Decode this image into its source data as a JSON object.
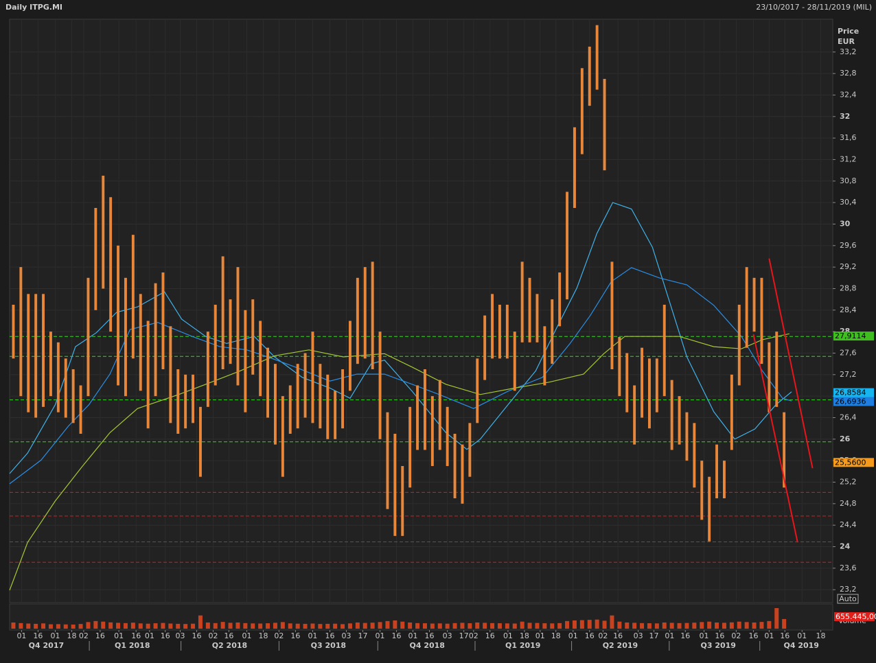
{
  "chart_data": {
    "type": "range_bar",
    "title": "Daily ITPG.MI",
    "date_range": "23/10/2017 - 28/11/2019 (MIL)",
    "y_label": "Price",
    "y_unit": "EUR",
    "scale_mode": "Auto",
    "volume_label": "Volume",
    "color": "#e8873a",
    "grid": true,
    "xlim": [
      0,
      110
    ],
    "ylim": [
      22.96,
      33.81
    ],
    "yticks": [
      {
        "value": 23.2,
        "label": "23,2"
      },
      {
        "value": 23.6,
        "label": "23,6"
      },
      24,
      {
        "value": 24.4,
        "label": "24,4"
      },
      {
        "value": 24.8,
        "label": "24,8"
      },
      {
        "value": 25.2,
        "label": "25,2"
      },
      {
        "value": 25.6,
        "label": "25,6"
      },
      26,
      {
        "value": 26.4,
        "label": "26,4"
      },
      {
        "value": 26.8,
        "label": "26,8"
      },
      {
        "value": 27.2,
        "label": "27,2"
      },
      {
        "value": 27.6,
        "label": "27,6"
      },
      28,
      {
        "value": 28.4,
        "label": "28,4"
      },
      {
        "value": 28.8,
        "label": "28,8"
      },
      {
        "value": 29.2,
        "label": "29,2"
      },
      {
        "value": 29.6,
        "label": "29,6"
      },
      30,
      {
        "value": 30.4,
        "label": "30,4"
      },
      {
        "value": 30.8,
        "label": "30,8"
      },
      {
        "value": 31.2,
        "label": "31,2"
      },
      {
        "value": 31.6,
        "label": "31,6"
      },
      32,
      {
        "value": 32.4,
        "label": "32,4"
      },
      {
        "value": 32.8,
        "label": "32,8"
      },
      {
        "value": 33.2,
        "label": "33,2"
      }
    ],
    "xticks": [
      {
        "value": 1.6,
        "label": "01"
      },
      {
        "value": 3.8,
        "label": "16"
      },
      {
        "value": 6.1,
        "label": "01"
      },
      {
        "value": 8.3,
        "label": "18"
      },
      {
        "value": 9.9,
        "label": "02"
      },
      {
        "value": 12.1,
        "label": "16"
      },
      {
        "value": 14.6,
        "label": "01"
      },
      {
        "value": 16.9,
        "label": "16"
      },
      {
        "value": 18.7,
        "label": "01"
      },
      {
        "value": 20.8,
        "label": "16"
      },
      {
        "value": 22.8,
        "label": "03"
      },
      {
        "value": 25.0,
        "label": "16"
      },
      {
        "value": 27.2,
        "label": "02"
      },
      {
        "value": 29.3,
        "label": "16"
      },
      {
        "value": 31.7,
        "label": "01"
      },
      {
        "value": 33.9,
        "label": "18"
      },
      {
        "value": 36.0,
        "label": "02"
      },
      {
        "value": 38.2,
        "label": "16"
      },
      {
        "value": 40.5,
        "label": "01"
      },
      {
        "value": 42.8,
        "label": "16"
      },
      {
        "value": 45.0,
        "label": "03"
      },
      {
        "value": 47.2,
        "label": "17"
      },
      {
        "value": 49.5,
        "label": "01"
      },
      {
        "value": 51.7,
        "label": "16"
      },
      {
        "value": 53.9,
        "label": "01"
      },
      {
        "value": 56.1,
        "label": "16"
      },
      {
        "value": 58.5,
        "label": "03"
      },
      {
        "value": 60.7,
        "label": "17"
      },
      {
        "value": 62.0,
        "label": "02"
      },
      {
        "value": 64.2,
        "label": "16"
      },
      {
        "value": 66.6,
        "label": "01"
      },
      {
        "value": 68.8,
        "label": "18"
      },
      {
        "value": 70.9,
        "label": "01"
      },
      {
        "value": 73.0,
        "label": "18"
      },
      {
        "value": 75.3,
        "label": "01"
      },
      {
        "value": 77.5,
        "label": "16"
      },
      {
        "value": 79.3,
        "label": "02"
      },
      {
        "value": 81.3,
        "label": "16"
      },
      {
        "value": 84.0,
        "label": "03"
      },
      {
        "value": 86.1,
        "label": "17"
      },
      {
        "value": 88.2,
        "label": "01"
      },
      {
        "value": 90.3,
        "label": "16"
      },
      {
        "value": 92.8,
        "label": "01"
      },
      {
        "value": 94.9,
        "label": "16"
      },
      {
        "value": 97.1,
        "label": "02"
      },
      {
        "value": 99.4,
        "label": "16"
      },
      {
        "value": 101.5,
        "label": "01"
      },
      {
        "value": 103.6,
        "label": "16"
      },
      {
        "value": 105.9,
        "label": "01"
      },
      {
        "value": 108.4,
        "label": "18"
      }
    ],
    "quarters": [
      {
        "value": 4.9,
        "label": "Q4 2017"
      },
      {
        "value": 16.4,
        "label": "Q1 2018"
      },
      {
        "value": 29.4,
        "label": "Q2 2018"
      },
      {
        "value": 42.6,
        "label": "Q3 2018"
      },
      {
        "value": 55.8,
        "label": "Q4 2018"
      },
      {
        "value": 68.6,
        "label": "Q1 2019"
      },
      {
        "value": 81.6,
        "label": "Q2 2019"
      },
      {
        "value": 94.7,
        "label": "Q3 2019"
      },
      {
        "value": 105.8,
        "label": "Q4 2019"
      }
    ],
    "x": [
      0.5,
      1.5,
      2.5,
      3.5,
      4.5,
      5.5,
      6.5,
      7.5,
      8.5,
      9.5,
      10.5,
      11.5,
      12.5,
      13.5,
      14.5,
      15.5,
      16.5,
      17.5,
      18.5,
      19.5,
      20.5,
      21.5,
      22.5,
      23.5,
      24.5,
      25.5,
      26.5,
      27.5,
      28.5,
      29.5,
      30.5,
      31.5,
      32.5,
      33.5,
      34.5,
      35.5,
      36.5,
      37.5,
      38.5,
      39.5,
      40.5,
      41.5,
      42.5,
      43.5,
      44.5,
      45.5,
      46.5,
      47.5,
      48.5,
      49.5,
      50.5,
      51.5,
      52.5,
      53.5,
      54.5,
      55.5,
      56.5,
      57.5,
      58.5,
      59.5,
      60.5,
      61.5,
      62.5,
      63.5,
      64.5,
      65.5,
      66.5,
      67.5,
      68.5,
      69.5,
      70.5,
      71.5,
      72.5,
      73.5,
      74.5,
      75.5,
      76.5,
      77.5,
      78.5,
      79.5,
      80.5,
      81.5,
      82.5,
      83.5,
      84.5,
      85.5,
      86.5,
      87.5,
      88.5,
      89.5,
      90.5,
      91.5,
      92.5,
      93.5,
      94.5,
      95.5,
      96.5,
      97.5,
      98.5,
      99.5,
      100.5,
      101.5,
      102.5,
      103.5
    ],
    "high": [
      28.5,
      29.2,
      28.7,
      28.7,
      28.7,
      28.0,
      27.8,
      27.5,
      27.3,
      27.0,
      29.0,
      30.3,
      30.9,
      30.5,
      29.6,
      29.0,
      29.8,
      28.7,
      28.2,
      28.9,
      29.1,
      28.1,
      27.3,
      27.2,
      27.2,
      26.6,
      28.0,
      28.5,
      29.4,
      28.6,
      29.2,
      28.4,
      28.6,
      28.2,
      27.7,
      27.4,
      26.8,
      27.0,
      27.4,
      27.6,
      28.0,
      27.4,
      27.2,
      26.9,
      27.3,
      28.2,
      29.0,
      29.2,
      29.3,
      28.0,
      26.5,
      26.1,
      25.5,
      26.6,
      27.0,
      27.3,
      26.8,
      27.1,
      26.6,
      26.1,
      25.9,
      26.3,
      27.5,
      28.3,
      28.7,
      28.5,
      28.5,
      28.0,
      29.3,
      29.0,
      28.7,
      28.1,
      28.6,
      29.1,
      30.6,
      31.8,
      32.9,
      33.3,
      33.7,
      32.7,
      29.3,
      27.9,
      27.6,
      27.0,
      27.7,
      27.5,
      27.5,
      28.5,
      27.1,
      26.8,
      26.5,
      26.3,
      25.6,
      25.3,
      25.9,
      25.6,
      27.2,
      28.5,
      29.2,
      29.0,
      29.0,
      27.8,
      28.0,
      26.5
    ],
    "low": [
      27.5,
      26.8,
      26.5,
      26.4,
      26.6,
      26.8,
      26.5,
      26.4,
      26.3,
      26.1,
      26.8,
      28.4,
      28.8,
      28.0,
      27.0,
      26.8,
      27.5,
      26.9,
      26.2,
      26.8,
      27.3,
      26.3,
      26.1,
      26.2,
      26.3,
      25.3,
      26.6,
      27.0,
      27.3,
      27.4,
      27.0,
      26.5,
      27.2,
      26.8,
      26.4,
      25.9,
      25.3,
      26.1,
      26.2,
      26.4,
      26.3,
      26.2,
      26.0,
      26.0,
      26.2,
      26.9,
      27.4,
      27.5,
      27.3,
      26.0,
      24.7,
      24.2,
      24.2,
      25.1,
      25.8,
      25.8,
      25.5,
      25.8,
      25.5,
      24.9,
      24.8,
      25.3,
      26.3,
      27.1,
      27.5,
      27.5,
      27.5,
      26.9,
      27.8,
      27.8,
      27.8,
      27.0,
      27.4,
      28.1,
      28.6,
      30.3,
      31.3,
      32.2,
      32.5,
      31.0,
      27.3,
      26.8,
      26.5,
      25.9,
      26.4,
      26.2,
      26.5,
      26.8,
      25.8,
      25.9,
      25.6,
      25.1,
      24.5,
      24.1,
      24.9,
      24.9,
      25.8,
      27.0,
      27.7,
      28.0,
      27.4,
      26.5,
      26.6,
      25.1
    ],
    "volume": [
      420000,
      380000,
      350000,
      330000,
      360000,
      300000,
      310000,
      290000,
      280000,
      320000,
      450000,
      520000,
      480000,
      430000,
      400000,
      380000,
      410000,
      360000,
      340000,
      370000,
      390000,
      350000,
      330000,
      320000,
      340000,
      900000,
      420000,
      380000,
      460000,
      400000,
      420000,
      380000,
      360000,
      350000,
      370000,
      400000,
      450000,
      360000,
      340000,
      330000,
      350000,
      320000,
      330000,
      340000,
      310000,
      360000,
      420000,
      390000,
      410000,
      450000,
      520000,
      560000,
      480000,
      420000,
      380000,
      370000,
      350000,
      360000,
      340000,
      380000,
      400000,
      370000,
      420000,
      400000,
      380000,
      370000,
      360000,
      350000,
      480000,
      400000,
      390000,
      370000,
      360000,
      380000,
      520000,
      560000,
      580000,
      600000,
      620000,
      540000,
      900000,
      480000,
      420000,
      400000,
      380000,
      370000,
      360000,
      420000,
      400000,
      380000,
      390000,
      410000,
      450000,
      480000,
      420000,
      400000,
      430000,
      480000,
      450000,
      420000,
      460000,
      520000,
      1400000,
      655445
    ],
    "volume_tag": "655.445,00",
    "series": [
      {
        "name": "MA fast",
        "color": "#3fb2ea",
        "x": [
          0,
          2.4,
          6.1,
          8.8,
          11.6,
          14.3,
          17.1,
          20.7,
          23.0,
          26.2,
          29.0,
          32.7,
          35.4,
          39.1,
          42.8,
          45.5,
          48.3,
          50.1,
          53.8,
          58.3,
          61.1,
          62.9,
          66.6,
          70.3,
          73.0,
          75.8,
          78.5,
          80.6,
          83.1,
          85.9,
          88.2,
          90.5,
          94.1,
          96.9,
          99.6,
          102.4,
          104.5
        ],
        "values": [
          25.36,
          25.74,
          26.64,
          27.72,
          27.98,
          28.36,
          28.46,
          28.74,
          28.23,
          27.91,
          27.78,
          27.91,
          27.53,
          27.15,
          26.95,
          26.76,
          27.4,
          27.47,
          26.89,
          26.12,
          25.81,
          26.0,
          26.64,
          27.27,
          28.04,
          28.81,
          29.83,
          30.4,
          30.28,
          29.57,
          28.55,
          27.53,
          26.51,
          26.0,
          26.19,
          26.64,
          26.88
        ]
      },
      {
        "name": "MA slow",
        "color": "#2a8ee6",
        "x": [
          0,
          4.2,
          7.9,
          10.6,
          13.4,
          16.1,
          19.8,
          24.4,
          28.1,
          31.7,
          34.5,
          38.2,
          42.8,
          46.4,
          50.1,
          53.8,
          57.4,
          62.0,
          66.6,
          71.2,
          74.9,
          77.6,
          80.4,
          83.1,
          86.8,
          90.5,
          94.1,
          97.8,
          100.6,
          103.3,
          104.5
        ],
        "values": [
          25.17,
          25.61,
          26.25,
          26.64,
          27.21,
          28.04,
          28.17,
          27.91,
          27.72,
          27.66,
          27.53,
          27.34,
          27.08,
          27.21,
          27.21,
          27.02,
          26.83,
          26.57,
          26.89,
          27.15,
          27.78,
          28.3,
          28.93,
          29.19,
          29.0,
          28.87,
          28.49,
          27.91,
          27.27,
          26.76,
          26.71
        ]
      },
      {
        "name": "MA long",
        "color": "#a6c832",
        "x": [
          0,
          2.4,
          6.1,
          9.7,
          13.4,
          17.1,
          22.6,
          26.2,
          30.8,
          35.4,
          40.0,
          44.6,
          50.1,
          53.8,
          58.3,
          62.9,
          67.5,
          72.1,
          76.7,
          79.4,
          82.2,
          85.9,
          89.5,
          94.1,
          97.8,
          100.6,
          104.2
        ],
        "values": [
          23.19,
          24.08,
          24.85,
          25.49,
          26.12,
          26.57,
          26.83,
          27.02,
          27.27,
          27.55,
          27.66,
          27.53,
          27.59,
          27.34,
          27.02,
          26.83,
          26.95,
          27.06,
          27.21,
          27.59,
          27.91,
          27.91,
          27.91,
          27.72,
          27.68,
          27.85,
          27.96
        ]
      }
    ],
    "levels": [
      {
        "value": 27.91,
        "color": "#3fcf2a"
      },
      {
        "value": 27.54,
        "color": "#3fcf2a"
      },
      {
        "value": 26.73,
        "color": "#3fcf2a"
      },
      {
        "value": 25.95,
        "color": "#3fcf2a"
      },
      {
        "value": 25.01,
        "color": "#d02020"
      },
      {
        "value": 24.57,
        "color": "#d02020"
      },
      {
        "value": 24.09,
        "color": "#d02020"
      },
      {
        "value": 23.71,
        "color": "#d02020"
      }
    ],
    "trend_lines": [
      {
        "x": [
          101.5,
          107.3
        ],
        "values": [
          29.36,
          25.46
        ],
        "color": "#e8151b"
      },
      {
        "x": [
          99.4,
          105.3
        ],
        "values": [
          27.95,
          24.08
        ],
        "color": "#e8151b"
      }
    ],
    "price_tags": [
      {
        "value": 27.9114,
        "label": "27,9114",
        "color": "#3fbf1f"
      },
      {
        "value": 26.8584,
        "label": "26,8584",
        "color": "#17b5f0"
      },
      {
        "value": 26.6936,
        "label": "26,6936",
        "color": "#1e7fe0"
      },
      {
        "value": 25.56,
        "label": "25,5600",
        "color": "#f59a1a"
      }
    ]
  }
}
